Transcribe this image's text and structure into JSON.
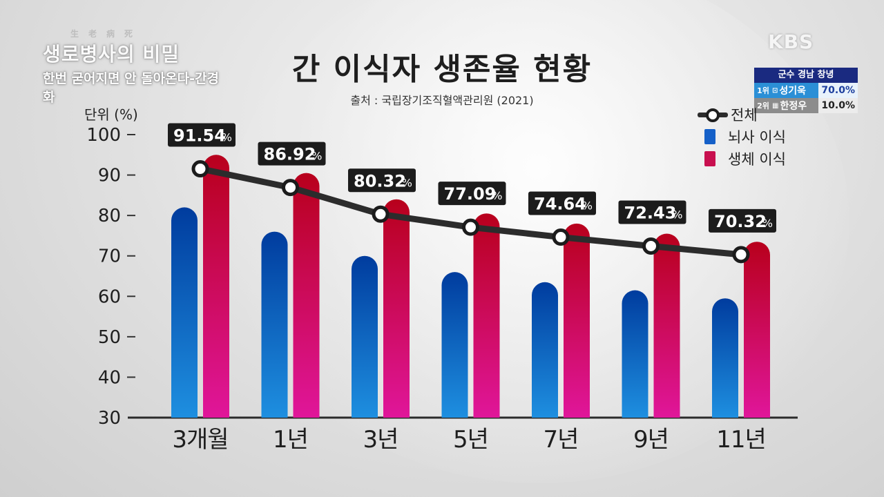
{
  "overlay": {
    "show_logo_dots": "生老病死",
    "show_name": "생로병사의 비밀",
    "show_subtitle": "한번 굳어지면 안 돌아온다-간경화",
    "broadcaster": "KBS",
    "election": {
      "header": "군수 경남 창녕",
      "rows": [
        {
          "rank": "1위",
          "symbol": "⊡",
          "candidate": "성기욱",
          "percent": "70.0%",
          "color": "#2b8fd6"
        },
        {
          "rank": "2위",
          "symbol": "▦",
          "candidate": "한정우",
          "percent": "10.0%",
          "color": "#8c8c8c"
        }
      ]
    }
  },
  "colors": {
    "blue_top": "#003c9e",
    "blue_bottom": "#1e8fe0",
    "red_top": "#b8001c",
    "red_bottom": "#e0169a",
    "line": "#2c2c2c",
    "label_bg": "#1c1c1c"
  },
  "chart_data": {
    "type": "bar",
    "title": "간 이식자 생존율 현황",
    "source": "출처 : 국립장기조직혈액관리원 (2021)",
    "unit_label": "단위 (%)",
    "categories": [
      "3개월",
      "1년",
      "3년",
      "5년",
      "7년",
      "9년",
      "11년"
    ],
    "ylim": [
      30,
      100
    ],
    "yticks": [
      30,
      40,
      50,
      60,
      70,
      80,
      90,
      100
    ],
    "legend_position": "top-right",
    "grid": false,
    "series": [
      {
        "name": "뇌사 이식",
        "type": "bar",
        "color": "#1560c8",
        "values": [
          82,
          76,
          70,
          66,
          63.5,
          61.5,
          59.5
        ]
      },
      {
        "name": "생체 이식",
        "type": "bar",
        "color": "#c8104f",
        "values": [
          95,
          90.5,
          84,
          80.5,
          78,
          75.5,
          73.5
        ]
      },
      {
        "name": "전체",
        "type": "line",
        "color": "#2c2c2c",
        "values": [
          91.54,
          86.92,
          80.32,
          77.09,
          74.64,
          72.43,
          70.32
        ]
      }
    ],
    "data_labels": [
      "91.54",
      "86.92",
      "80.32",
      "77.09",
      "74.64",
      "72.43",
      "70.32"
    ],
    "data_label_unit": "%"
  }
}
